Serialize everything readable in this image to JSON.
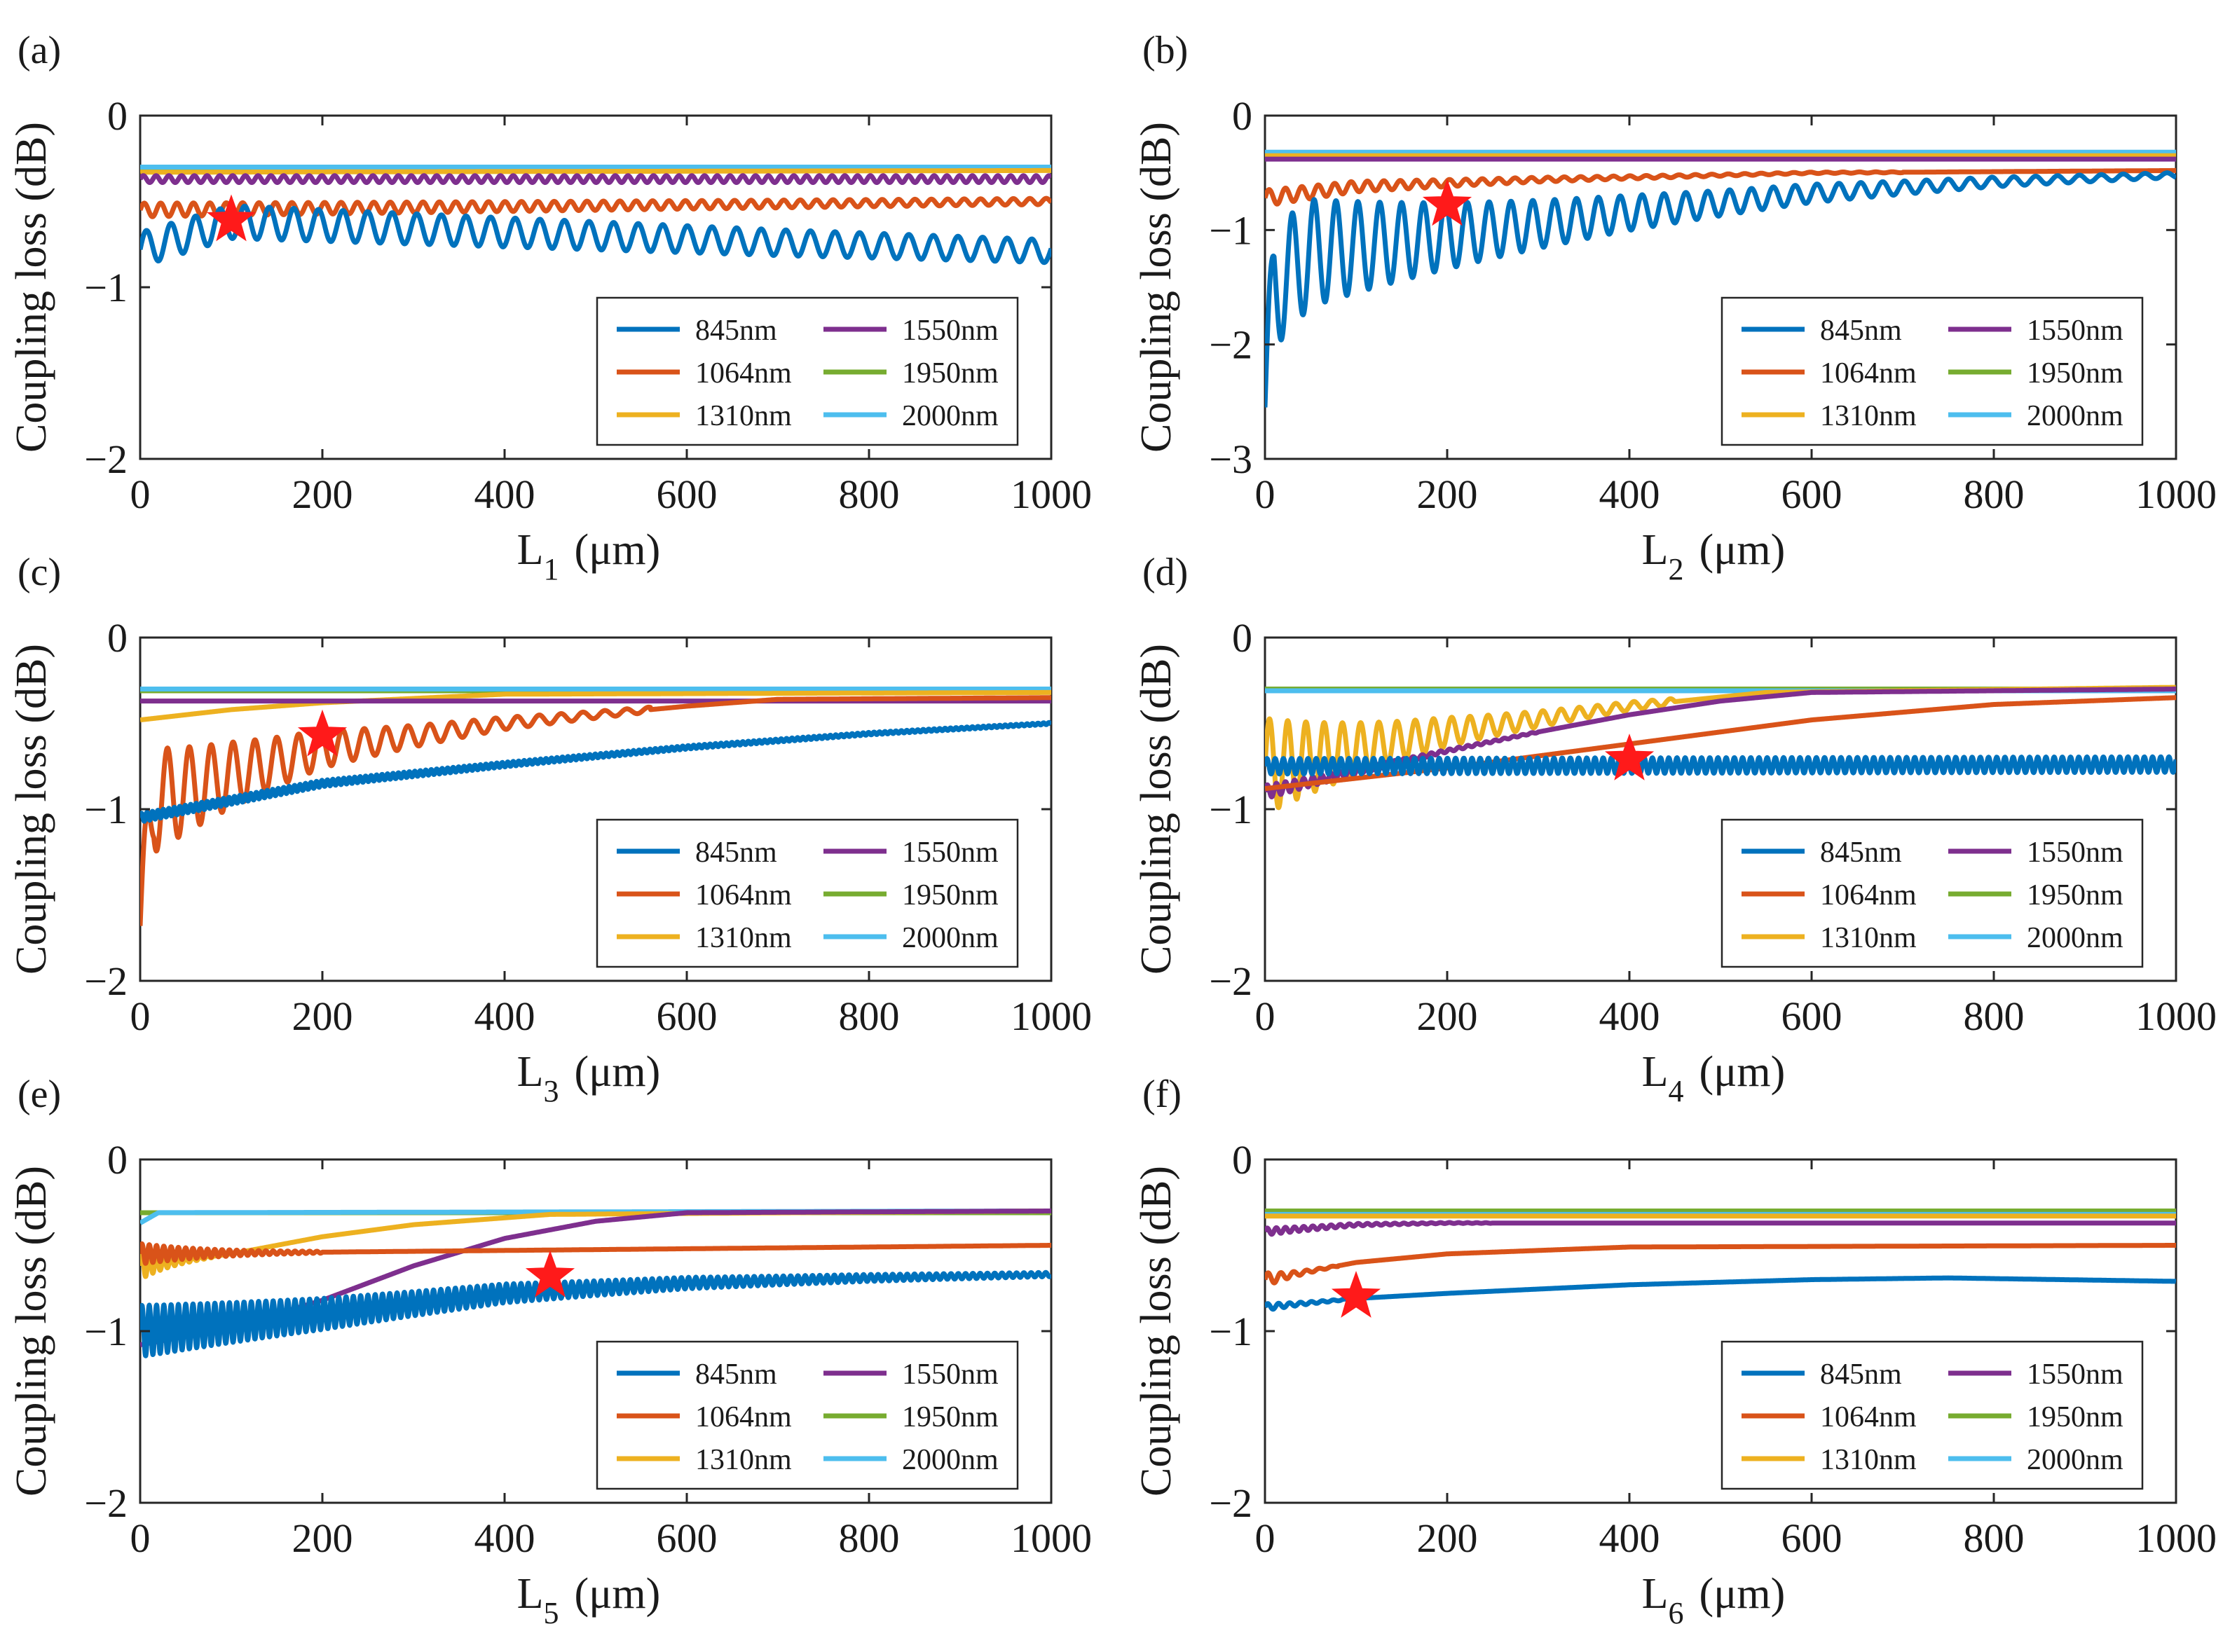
{
  "figure": {
    "y_axis_label": "Coupling loss (dB)",
    "x_unit": "(μm)",
    "colors": {
      "845nm": "#0072BD",
      "1064nm": "#D95319",
      "1310nm": "#EDB120",
      "1550nm": "#7E2F8E",
      "1950nm": "#77AC30",
      "2000nm": "#4DBEEE",
      "star": "#ff1a1a"
    }
  },
  "chart_data": [
    {
      "panel": "(a)",
      "type": "line",
      "xlabel_main": "L",
      "xlabel_sub": "1",
      "xlabel_unit": "(μm)",
      "ylabel": "Coupling loss (dB)",
      "xlim": [
        0,
        1000
      ],
      "ylim": [
        -2,
        0
      ],
      "xticks": [
        0,
        200,
        400,
        600,
        800,
        1000
      ],
      "xtick_labels": [
        "0",
        "200",
        "400",
        "600",
        "800",
        "1000"
      ],
      "yticks": [
        0,
        -1,
        -2
      ],
      "ytick_labels": [
        "0",
        "−1",
        "−2"
      ],
      "legend": [
        "845nm",
        "1064nm",
        "1310nm",
        "1550nm",
        "1950nm",
        "2000nm"
      ],
      "series": [
        {
          "name": "845nm",
          "points": [
            [
              0,
              -0.78
            ],
            [
              100,
              -0.62
            ],
            [
              300,
              -0.66
            ],
            [
              500,
              -0.7
            ],
            [
              700,
              -0.74
            ],
            [
              1000,
              -0.79
            ]
          ],
          "osc_amp": 0.1,
          "osc_period": 27,
          "osc_decay": 0.0004,
          "osc_x_end": 1000
        },
        {
          "name": "1064nm",
          "points": [
            [
              0,
              -0.55
            ],
            [
              1000,
              -0.5
            ]
          ],
          "osc_amp": 0.04,
          "osc_period": 18,
          "osc_decay": 0.0008,
          "osc_x_end": 1000
        },
        {
          "name": "1310nm",
          "points": [
            [
              0,
              -0.33
            ],
            [
              1000,
              -0.32
            ]
          ]
        },
        {
          "name": "1550nm",
          "points": [
            [
              0,
              -0.37
            ],
            [
              1000,
              -0.37
            ]
          ],
          "osc_amp": 0.02,
          "osc_period": 14,
          "osc_decay": 0,
          "osc_x_end": 1000
        },
        {
          "name": "1950nm",
          "points": [
            [
              0,
              -0.31
            ],
            [
              1000,
              -0.31
            ]
          ]
        },
        {
          "name": "2000nm",
          "points": [
            [
              0,
              -0.3
            ],
            [
              1000,
              -0.3
            ]
          ]
        }
      ],
      "marker": {
        "x": 100,
        "y": -0.61
      }
    },
    {
      "panel": "(b)",
      "type": "line",
      "xlabel_main": "L",
      "xlabel_sub": "2",
      "xlabel_unit": "(μm)",
      "ylabel": "Coupling loss (dB)",
      "xlim": [
        0,
        1000
      ],
      "ylim": [
        -3,
        0
      ],
      "xticks": [
        0,
        200,
        400,
        600,
        800,
        1000
      ],
      "xtick_labels": [
        "0",
        "200",
        "400",
        "600",
        "800",
        "1000"
      ],
      "yticks": [
        0,
        -1,
        -2,
        -3
      ],
      "ytick_labels": [
        "0",
        "−1",
        "−2",
        "−3"
      ],
      "legend": [
        "845nm",
        "1064nm",
        "1310nm",
        "1550nm",
        "1950nm",
        "2000nm"
      ],
      "series": [
        {
          "name": "845nm",
          "points": [
            [
              0,
              -2.55
            ],
            [
              10,
              -1.5
            ],
            [
              50,
              -1.2
            ],
            [
              200,
              -1.05
            ],
            [
              400,
              -0.85
            ],
            [
              600,
              -0.68
            ],
            [
              800,
              -0.58
            ],
            [
              1000,
              -0.52
            ]
          ],
          "osc_amp": 0.55,
          "osc_period": 24,
          "osc_decay": 0.0032,
          "osc_x_end": 1000
        },
        {
          "name": "1064nm",
          "points": [
            [
              0,
              -0.72
            ],
            [
              100,
              -0.62
            ],
            [
              300,
              -0.56
            ],
            [
              600,
              -0.5
            ],
            [
              1000,
              -0.48
            ]
          ],
          "osc_amp": 0.07,
          "osc_period": 18,
          "osc_decay": 0.004,
          "osc_x_end": 700
        },
        {
          "name": "1310nm",
          "points": [
            [
              0,
              -0.35
            ],
            [
              1000,
              -0.35
            ]
          ]
        },
        {
          "name": "1550nm",
          "points": [
            [
              0,
              -0.38
            ],
            [
              1000,
              -0.38
            ]
          ]
        },
        {
          "name": "1950nm",
          "points": [
            [
              0,
              -0.33
            ],
            [
              1000,
              -0.33
            ]
          ]
        },
        {
          "name": "2000nm",
          "points": [
            [
              0,
              -0.32
            ],
            [
              1000,
              -0.32
            ]
          ]
        }
      ],
      "marker": {
        "x": 200,
        "y": -0.78
      }
    },
    {
      "panel": "(c)",
      "type": "line",
      "xlabel_main": "L",
      "xlabel_sub": "3",
      "xlabel_unit": "(μm)",
      "ylabel": "Coupling loss (dB)",
      "xlim": [
        0,
        1000
      ],
      "ylim": [
        -2,
        0
      ],
      "xticks": [
        0,
        200,
        400,
        600,
        800,
        1000
      ],
      "xtick_labels": [
        "0",
        "200",
        "400",
        "600",
        "800",
        "1000"
      ],
      "yticks": [
        0,
        -1,
        -2
      ],
      "ytick_labels": [
        "0",
        "−1",
        "−2"
      ],
      "legend": [
        "845nm",
        "1064nm",
        "1310nm",
        "1550nm",
        "1950nm",
        "2000nm"
      ],
      "series": [
        {
          "name": "845nm",
          "points": [
            [
              0,
              -1.05
            ],
            [
              100,
              -0.95
            ],
            [
              200,
              -0.85
            ],
            [
              400,
              -0.74
            ],
            [
              600,
              -0.64
            ],
            [
              800,
              -0.56
            ],
            [
              1000,
              -0.5
            ]
          ],
          "osc_amp": 0.025,
          "osc_period": 6,
          "osc_decay": 0.0015,
          "osc_x_end": 1000
        },
        {
          "name": "1064nm",
          "points": [
            [
              0,
              -1.68
            ],
            [
              15,
              -0.95
            ],
            [
              100,
              -0.8
            ],
            [
              200,
              -0.65
            ],
            [
              400,
              -0.5
            ],
            [
              600,
              -0.4
            ],
            [
              700,
              -0.36
            ],
            [
              1000,
              -0.35
            ]
          ],
          "osc_amp": 0.33,
          "osc_period": 24,
          "osc_decay": 0.0055,
          "osc_x_end": 560
        },
        {
          "name": "1310nm",
          "points": [
            [
              0,
              -0.48
            ],
            [
              100,
              -0.42
            ],
            [
              200,
              -0.38
            ],
            [
              400,
              -0.33
            ],
            [
              1000,
              -0.32
            ]
          ]
        },
        {
          "name": "1550nm",
          "points": [
            [
              0,
              -0.37
            ],
            [
              1000,
              -0.37
            ]
          ]
        },
        {
          "name": "1950nm",
          "points": [
            [
              0,
              -0.31
            ],
            [
              1000,
              -0.31
            ]
          ]
        },
        {
          "name": "2000nm",
          "points": [
            [
              0,
              -0.3
            ],
            [
              1000,
              -0.3
            ]
          ]
        }
      ],
      "marker": {
        "x": 200,
        "y": -0.57
      }
    },
    {
      "panel": "(d)",
      "type": "line",
      "xlabel_main": "L",
      "xlabel_sub": "4",
      "xlabel_unit": "(μm)",
      "ylabel": "Coupling loss (dB)",
      "xlim": [
        0,
        1000
      ],
      "ylim": [
        -2,
        0
      ],
      "xticks": [
        0,
        200,
        400,
        600,
        800,
        1000
      ],
      "xtick_labels": [
        "0",
        "200",
        "400",
        "600",
        "800",
        "1000"
      ],
      "yticks": [
        0,
        -1,
        -2
      ],
      "ytick_labels": [
        "0",
        "−1",
        "−2"
      ],
      "legend": [
        "845nm",
        "1064nm",
        "1310nm",
        "1550nm",
        "1950nm",
        "2000nm"
      ],
      "series": [
        {
          "name": "845nm",
          "points": [
            [
              0,
              -0.75
            ],
            [
              1000,
              -0.74
            ]
          ],
          "osc_amp": 0.045,
          "osc_period": 9,
          "osc_decay": 0,
          "osc_x_end": 1000
        },
        {
          "name": "1064nm",
          "points": [
            [
              0,
              -0.88
            ],
            [
              100,
              -0.82
            ],
            [
              200,
              -0.76
            ],
            [
              400,
              -0.62
            ],
            [
              600,
              -0.48
            ],
            [
              800,
              -0.39
            ],
            [
              1000,
              -0.35
            ]
          ]
        },
        {
          "name": "1310nm",
          "points": [
            [
              0,
              -0.75
            ],
            [
              200,
              -0.55
            ],
            [
              400,
              -0.4
            ],
            [
              550,
              -0.32
            ],
            [
              1000,
              -0.29
            ]
          ],
          "osc_amp": 0.28,
          "osc_period": 20,
          "osc_decay": 0.006,
          "osc_x_end": 450
        },
        {
          "name": "1550nm",
          "points": [
            [
              0,
              -0.9
            ],
            [
              100,
              -0.78
            ],
            [
              200,
              -0.66
            ],
            [
              300,
              -0.55
            ],
            [
              400,
              -0.45
            ],
            [
              500,
              -0.37
            ],
            [
              600,
              -0.32
            ],
            [
              1000,
              -0.3
            ]
          ],
          "osc_amp": 0.04,
          "osc_period": 10,
          "osc_decay": 0.008,
          "osc_x_end": 300
        },
        {
          "name": "1950nm",
          "points": [
            [
              0,
              -0.3
            ],
            [
              1000,
              -0.3
            ]
          ]
        },
        {
          "name": "2000nm",
          "points": [
            [
              0,
              -0.31
            ],
            [
              1000,
              -0.31
            ]
          ]
        }
      ],
      "marker": {
        "x": 400,
        "y": -0.71
      }
    },
    {
      "panel": "(e)",
      "type": "line",
      "xlabel_main": "L",
      "xlabel_sub": "5",
      "xlabel_unit": "(μm)",
      "ylabel": "Coupling loss (dB)",
      "xlim": [
        0,
        1000
      ],
      "ylim": [
        -2,
        0
      ],
      "xticks": [
        0,
        200,
        400,
        600,
        800,
        1000
      ],
      "xtick_labels": [
        "0",
        "200",
        "400",
        "600",
        "800",
        "1000"
      ],
      "yticks": [
        0,
        -1,
        -2
      ],
      "ytick_labels": [
        "0",
        "−1",
        "−2"
      ],
      "legend": [
        "845nm",
        "1064nm",
        "1310nm",
        "1550nm",
        "1950nm",
        "2000nm"
      ],
      "series": [
        {
          "name": "845nm",
          "points": [
            [
              0,
              -1.0
            ],
            [
              200,
              -0.9
            ],
            [
              400,
              -0.78
            ],
            [
              600,
              -0.72
            ],
            [
              800,
              -0.69
            ],
            [
              1000,
              -0.67
            ]
          ],
          "osc_amp": 0.15,
          "osc_period": 8,
          "osc_decay": 0.0025,
          "osc_x_end": 1000
        },
        {
          "name": "1064nm",
          "points": [
            [
              0,
              -0.55
            ],
            [
              1000,
              -0.5
            ]
          ],
          "osc_amp": 0.06,
          "osc_period": 8,
          "osc_decay": 0.012,
          "osc_x_end": 200
        },
        {
          "name": "1310nm",
          "points": [
            [
              0,
              -0.62
            ],
            [
              100,
              -0.55
            ],
            [
              200,
              -0.45
            ],
            [
              300,
              -0.38
            ],
            [
              450,
              -0.32
            ],
            [
              1000,
              -0.3
            ]
          ],
          "osc_amp": 0.08,
          "osc_period": 8,
          "osc_decay": 0.03,
          "osc_x_end": 80
        },
        {
          "name": "1550nm",
          "points": [
            [
              0,
              -1.08
            ],
            [
              100,
              -0.98
            ],
            [
              200,
              -0.82
            ],
            [
              300,
              -0.62
            ],
            [
              400,
              -0.46
            ],
            [
              500,
              -0.36
            ],
            [
              600,
              -0.31
            ],
            [
              1000,
              -0.3
            ]
          ]
        },
        {
          "name": "1950nm",
          "points": [
            [
              0,
              -0.31
            ],
            [
              1000,
              -0.31
            ]
          ]
        },
        {
          "name": "2000nm",
          "points": [
            [
              0,
              -0.37
            ],
            [
              20,
              -0.31
            ],
            [
              1000,
              -0.3
            ]
          ]
        }
      ],
      "marker": {
        "x": 450,
        "y": -0.68
      }
    },
    {
      "panel": "(f)",
      "type": "line",
      "xlabel_main": "L",
      "xlabel_sub": "6",
      "xlabel_unit": "(μm)",
      "ylabel": "Coupling loss (dB)",
      "xlim": [
        0,
        1000
      ],
      "ylim": [
        -2,
        0
      ],
      "xticks": [
        0,
        200,
        400,
        600,
        800,
        1000
      ],
      "xtick_labels": [
        "0",
        "200",
        "400",
        "600",
        "800",
        "1000"
      ],
      "yticks": [
        0,
        -1,
        -2
      ],
      "ytick_labels": [
        "0",
        "−1",
        "−2"
      ],
      "legend": [
        "845nm",
        "1064nm",
        "1310nm",
        "1550nm",
        "1950nm",
        "2000nm"
      ],
      "series": [
        {
          "name": "845nm",
          "points": [
            [
              0,
              -0.86
            ],
            [
              100,
              -0.81
            ],
            [
              200,
              -0.78
            ],
            [
              400,
              -0.73
            ],
            [
              600,
              -0.7
            ],
            [
              750,
              -0.69
            ],
            [
              1000,
              -0.71
            ]
          ],
          "osc_amp": 0.02,
          "osc_period": 12,
          "osc_decay": 0.02,
          "osc_x_end": 100
        },
        {
          "name": "1064nm",
          "points": [
            [
              0,
              -0.7
            ],
            [
              100,
              -0.6
            ],
            [
              200,
              -0.55
            ],
            [
              400,
              -0.51
            ],
            [
              1000,
              -0.5
            ]
          ],
          "osc_amp": 0.04,
          "osc_period": 14,
          "osc_decay": 0.03,
          "osc_x_end": 80
        },
        {
          "name": "1310nm",
          "points": [
            [
              0,
              -0.33
            ],
            [
              1000,
              -0.33
            ]
          ]
        },
        {
          "name": "1550nm",
          "points": [
            [
              0,
              -0.42
            ],
            [
              100,
              -0.38
            ],
            [
              200,
              -0.37
            ],
            [
              1000,
              -0.37
            ]
          ],
          "osc_amp": 0.02,
          "osc_period": 10,
          "osc_decay": 0.01,
          "osc_x_end": 250
        },
        {
          "name": "1950nm",
          "points": [
            [
              0,
              -0.3
            ],
            [
              1000,
              -0.3
            ]
          ]
        },
        {
          "name": "2000nm",
          "points": [
            [
              0,
              -0.32
            ],
            [
              1000,
              -0.32
            ]
          ]
        }
      ],
      "marker": {
        "x": 100,
        "y": -0.8
      }
    }
  ]
}
